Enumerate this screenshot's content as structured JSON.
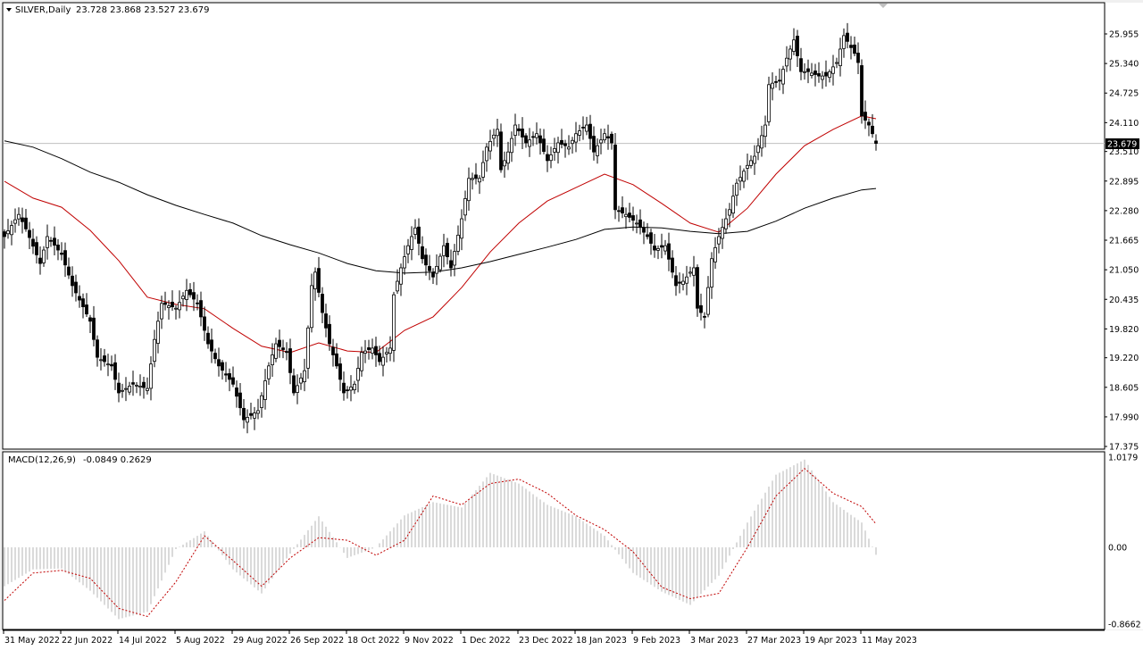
{
  "header": {
    "symbol": "SILVER,Daily",
    "ohlc": "23.728 23.868 23.527 23.679"
  },
  "macd_header": {
    "label": "MACD(12,26,9)",
    "values": "-0.0849 0.2629"
  },
  "current_price_label": "23.679",
  "colors": {
    "bull_body": "#ffffff",
    "bear_body": "#000000",
    "ma_fast": "#c00000",
    "ma_slow": "#000000",
    "macd_histogram": "#b4b4b4",
    "macd_signal": "#c00000",
    "price_line": "#c0c0c0"
  },
  "chart_data": [
    {
      "type": "candlestick",
      "title": "SILVER,Daily",
      "ylim": [
        17.375,
        26.0
      ],
      "y_ticks": [
        "25.955",
        "25.340",
        "24.725",
        "24.110",
        "23.510",
        "22.895",
        "22.280",
        "21.665",
        "21.050",
        "20.435",
        "19.820",
        "19.220",
        "18.605",
        "17.990",
        "17.375"
      ],
      "x_ticks": [
        "31 May 2022",
        "22 Jun 2022",
        "14 Jul 2022",
        "5 Aug 2022",
        "29 Aug 2022",
        "26 Sep 2022",
        "18 Oct 2022",
        "9 Nov 2022",
        "1 Dec 2022",
        "23 Dec 2022",
        "18 Jan 2023",
        "9 Feb 2023",
        "3 Mar 2023",
        "27 Mar 2023",
        "19 Apr 2023",
        "11 May 2023"
      ],
      "grid": false,
      "closes": [
        21.74,
        21.86,
        21.97,
        22.09,
        22.2,
        22.05,
        21.9,
        21.72,
        21.54,
        21.36,
        21.18,
        21.46,
        21.74,
        21.65,
        21.56,
        21.46,
        21.37,
        21.15,
        20.94,
        20.72,
        20.57,
        20.42,
        20.28,
        20.13,
        19.98,
        19.6,
        19.23,
        19.18,
        19.14,
        19.09,
        19.05,
        18.77,
        18.49,
        18.54,
        18.58,
        18.63,
        18.67,
        18.65,
        18.63,
        18.6,
        18.58,
        19.09,
        19.6,
        19.98,
        20.35,
        20.33,
        20.3,
        20.28,
        20.25,
        20.37,
        20.5,
        20.62,
        20.53,
        20.44,
        20.35,
        20.07,
        19.79,
        19.51,
        19.36,
        19.2,
        19.05,
        18.96,
        18.86,
        18.77,
        18.67,
        18.42,
        18.18,
        17.93,
        17.98,
        18.02,
        18.07,
        18.12,
        18.43,
        18.74,
        19.05,
        19.28,
        19.51,
        19.45,
        19.39,
        19.33,
        18.91,
        18.49,
        18.64,
        18.8,
        18.95,
        19.84,
        20.72,
        21.0,
        20.58,
        20.16,
        19.84,
        19.51,
        19.28,
        19.05,
        18.77,
        18.49,
        18.55,
        18.61,
        18.67,
        19.0,
        19.33,
        19.36,
        19.39,
        19.42,
        19.28,
        19.14,
        19.23,
        19.33,
        19.42,
        20.53,
        20.81,
        21.09,
        21.32,
        21.55,
        21.74,
        21.92,
        21.6,
        21.28,
        21.15,
        21.03,
        20.9,
        21.12,
        21.33,
        21.55,
        21.32,
        21.09,
        21.43,
        21.77,
        22.11,
        22.53,
        22.95,
        22.95,
        22.95,
        22.95,
        23.28,
        23.6,
        23.72,
        23.85,
        23.97,
        23.13,
        23.32,
        23.5,
        23.78,
        24.06,
        23.94,
        23.81,
        23.69,
        23.75,
        23.82,
        23.88,
        23.69,
        23.51,
        23.32,
        23.44,
        23.57,
        23.69,
        23.66,
        23.63,
        23.6,
        23.74,
        23.88,
        23.94,
        24.0,
        24.06,
        23.78,
        23.5,
        23.63,
        23.75,
        23.88,
        23.79,
        23.69,
        22.3,
        22.27,
        22.23,
        22.2,
        22.14,
        22.08,
        22.02,
        21.93,
        21.83,
        21.74,
        21.6,
        21.46,
        21.49,
        21.52,
        21.55,
        21.27,
        21.0,
        20.72,
        20.77,
        20.81,
        20.9,
        21.0,
        21.09,
        20.25,
        20.16,
        20.07,
        20.68,
        21.28,
        21.51,
        21.74,
        21.93,
        22.11,
        22.3,
        22.58,
        22.85,
        22.97,
        23.1,
        23.22,
        23.32,
        23.41,
        23.63,
        23.84,
        24.06,
        24.9,
        24.93,
        24.96,
        24.99,
        25.22,
        25.45,
        25.64,
        25.83,
        25.5,
        25.17,
        25.17,
        25.17,
        25.14,
        25.11,
        25.08,
        25.08,
        25.08,
        25.17,
        25.27,
        25.36,
        25.64,
        25.92,
        25.8,
        25.67,
        25.55,
        25.36,
        24.25,
        24.16,
        24.06,
        23.88,
        23.679
      ],
      "last_bar": {
        "open": 23.728,
        "high": 23.868,
        "low": 23.527,
        "close": 23.679
      },
      "series": [
        {
          "values": [
            22.89,
            22.54,
            22.35,
            21.87,
            21.24,
            20.48,
            20.33,
            20.24,
            19.83,
            19.46,
            19.33,
            19.53,
            19.36,
            19.33,
            19.79,
            20.07,
            20.68,
            21.42,
            22.02,
            22.48,
            22.76,
            23.04,
            22.82,
            22.43,
            22.02,
            21.83,
            22.33,
            23.04,
            23.63,
            23.97,
            24.25,
            24.19
          ],
          "color": "#c00000"
        },
        {
          "values": [
            23.73,
            23.6,
            23.36,
            23.08,
            22.87,
            22.61,
            22.39,
            22.2,
            22.02,
            21.76,
            21.57,
            21.4,
            21.18,
            21.03,
            20.98,
            21.0,
            21.09,
            21.22,
            21.37,
            21.52,
            21.68,
            21.89,
            21.94,
            21.92,
            21.85,
            21.8,
            21.85,
            22.06,
            22.33,
            22.54,
            22.71,
            22.74
          ],
          "color": "#000000"
        }
      ]
    },
    {
      "type": "bar+line",
      "title": "MACD(12,26,9)",
      "ylim": [
        -0.8662,
        1.0179
      ],
      "y_ticks": [
        "1.0179",
        "0.00",
        "-0.8662"
      ],
      "histogram": [
        -0.44,
        -0.25,
        -0.24,
        -0.49,
        -0.81,
        -0.73,
        -0.02,
        0.18,
        -0.25,
        -0.52,
        -0.07,
        0.35,
        -0.12,
        0.0,
        0.36,
        0.51,
        0.45,
        0.84,
        0.72,
        0.48,
        0.35,
        0.13,
        -0.29,
        -0.5,
        -0.65,
        -0.32,
        0.28,
        0.82,
        0.99,
        0.51,
        0.28,
        -0.0849
      ],
      "signal": [
        -0.6,
        -0.29,
        -0.26,
        -0.35,
        -0.69,
        -0.78,
        -0.39,
        0.13,
        -0.15,
        -0.44,
        -0.12,
        0.11,
        0.08,
        -0.09,
        0.08,
        0.58,
        0.48,
        0.72,
        0.77,
        0.61,
        0.36,
        0.2,
        -0.05,
        -0.45,
        -0.58,
        -0.52,
        0.0,
        0.58,
        0.89,
        0.61,
        0.46,
        0.2629
      ]
    }
  ]
}
